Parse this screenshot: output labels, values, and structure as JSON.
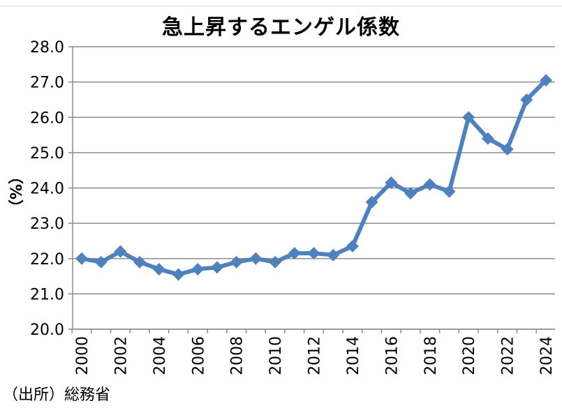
{
  "chart_data": {
    "type": "line",
    "title": "急上昇するエンゲル係数",
    "ylabel": "（%）",
    "xlabel": "",
    "source": "（出所）総務省",
    "ylim": [
      20.0,
      28.0
    ],
    "yticks": [
      "20.0",
      "21.0",
      "22.0",
      "23.0",
      "24.0",
      "25.0",
      "26.0",
      "27.0",
      "28.0"
    ],
    "xticks": [
      "2000",
      "2002",
      "2004",
      "2006",
      "2008",
      "2010",
      "2012",
      "2014",
      "2016",
      "2018",
      "2020",
      "2022",
      "2024"
    ],
    "x": [
      2000,
      2001,
      2002,
      2003,
      2004,
      2005,
      2006,
      2007,
      2008,
      2009,
      2010,
      2011,
      2012,
      2013,
      2014,
      2015,
      2016,
      2017,
      2018,
      2019,
      2020,
      2021,
      2022,
      2023,
      2024
    ],
    "series": [
      {
        "values": [
          22.0,
          21.9,
          22.2,
          21.9,
          21.7,
          21.55,
          21.7,
          21.75,
          21.9,
          22.0,
          21.9,
          22.15,
          22.15,
          22.1,
          22.35,
          23.6,
          24.15,
          23.85,
          24.1,
          23.9,
          26.0,
          25.4,
          25.1,
          26.5,
          27.05
        ],
        "color": "#4f81bd"
      }
    ],
    "grid": true,
    "marker": "diamond"
  }
}
